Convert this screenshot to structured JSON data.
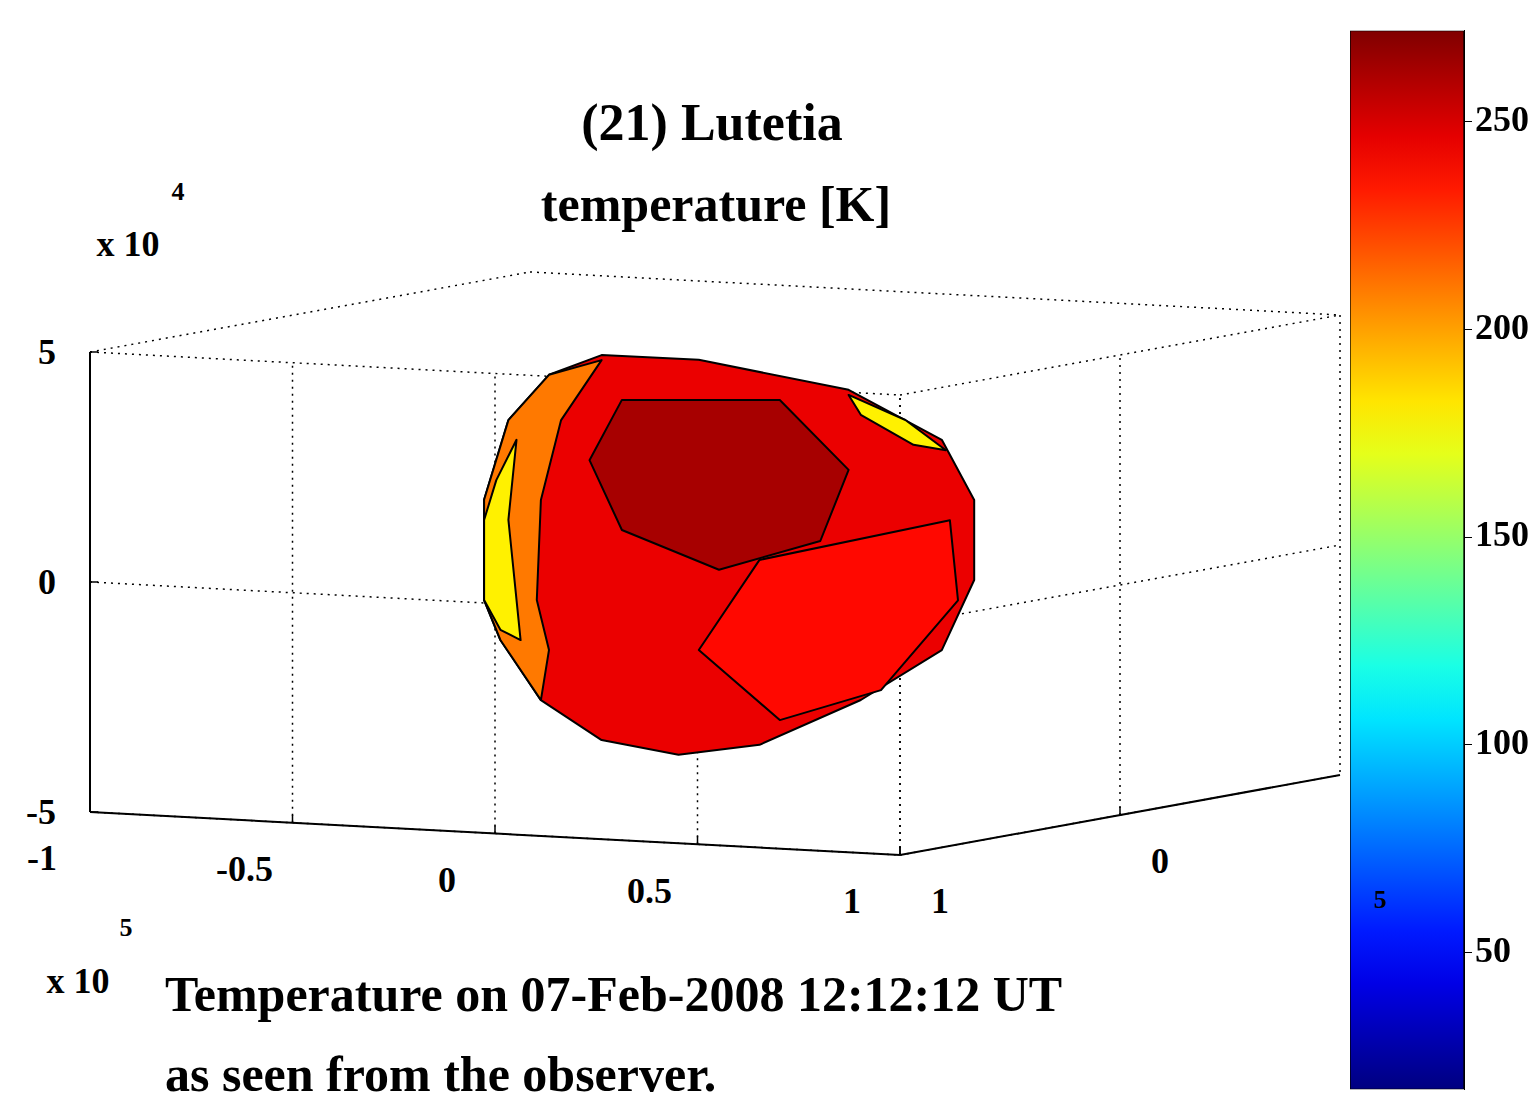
{
  "chart_data": {
    "type": "mesh3d",
    "title": "(21) Lutetia",
    "subtitle": "temperature [K]",
    "caption": [
      "Temperature on 07-Feb-2008 12:12:12 UT",
      "as seen from the observer."
    ],
    "xlim": [
      -1,
      1
    ],
    "xticks": [
      -1,
      -0.5,
      0,
      0.5,
      1
    ],
    "x_multiplier": {
      "base": "x 10",
      "power": "5"
    },
    "ylim": [
      -1,
      1
    ],
    "yticks": [
      0,
      1
    ],
    "y_multiplier": {
      "power": "5"
    },
    "zlim": [
      -5,
      5
    ],
    "zticks": [
      -5,
      0,
      5
    ],
    "z_multiplier": {
      "base": "x 10",
      "power": "4"
    },
    "grid": true,
    "colorbar": {
      "range": [
        17,
        272
      ],
      "ticks": [
        50,
        100,
        150,
        200,
        250
      ]
    },
    "facets": [
      {
        "temperature": 245,
        "vertices_xz": [
          [
            -0.28,
            4.4
          ],
          [
            -0.04,
            4.41
          ],
          [
            0.33,
            3.93
          ],
          [
            0.56,
            2.95
          ],
          [
            0.64,
            1.68
          ],
          [
            0.64,
            -0.06
          ],
          [
            0.56,
            -1.62
          ],
          [
            0.36,
            -2.8
          ],
          [
            0.11,
            -3.89
          ],
          [
            -0.09,
            -4.2
          ],
          [
            -0.28,
            -3.97
          ],
          [
            -0.43,
            -3.17
          ],
          [
            -0.53,
            -1.91
          ],
          [
            -0.57,
            -1.06
          ],
          [
            -0.57,
            1.12
          ],
          [
            -0.51,
            2.88
          ],
          [
            -0.41,
            3.91
          ]
        ]
      },
      {
        "temperature": 210,
        "vertices_xz": [
          [
            -0.51,
            2.88
          ],
          [
            -0.41,
            3.91
          ],
          [
            -0.28,
            4.29
          ],
          [
            -0.38,
            2.94
          ],
          [
            -0.43,
            1.18
          ],
          [
            -0.44,
            -1.0
          ],
          [
            -0.41,
            -2.07
          ],
          [
            -0.43,
            -3.17
          ],
          [
            -0.53,
            -1.91
          ],
          [
            -0.57,
            -1.06
          ],
          [
            -0.57,
            1.12
          ]
        ]
      },
      {
        "temperature": 180,
        "vertices_xz": [
          [
            -0.54,
            1.56
          ],
          [
            -0.49,
            2.46
          ],
          [
            -0.51,
            0.71
          ],
          [
            -0.48,
            -1.89
          ],
          [
            -0.53,
            -1.69
          ],
          [
            -0.57,
            -1.06
          ],
          [
            -0.57,
            0.68
          ]
        ]
      },
      {
        "temperature": 180,
        "vertices_xz": [
          [
            0.33,
            3.82
          ],
          [
            0.47,
            3.34
          ],
          [
            0.57,
            2.73
          ],
          [
            0.49,
            2.81
          ],
          [
            0.36,
            3.4
          ]
        ]
      },
      {
        "temperature": 238,
        "vertices_xz": [
          [
            0.11,
            0.13
          ],
          [
            0.58,
            1.21
          ],
          [
            0.6,
            -0.52
          ],
          [
            0.41,
            -2.56
          ],
          [
            0.16,
            -3.33
          ],
          [
            -0.04,
            -1.9
          ]
        ]
      },
      {
        "temperature": 262,
        "vertices_xz": [
          [
            -0.23,
            3.45
          ],
          [
            0.16,
            3.63
          ],
          [
            0.33,
            2.19
          ],
          [
            0.26,
            0.61
          ],
          [
            0.01,
            -0.13
          ],
          [
            -0.23,
            0.62
          ],
          [
            -0.31,
            2.1
          ]
        ]
      }
    ]
  }
}
